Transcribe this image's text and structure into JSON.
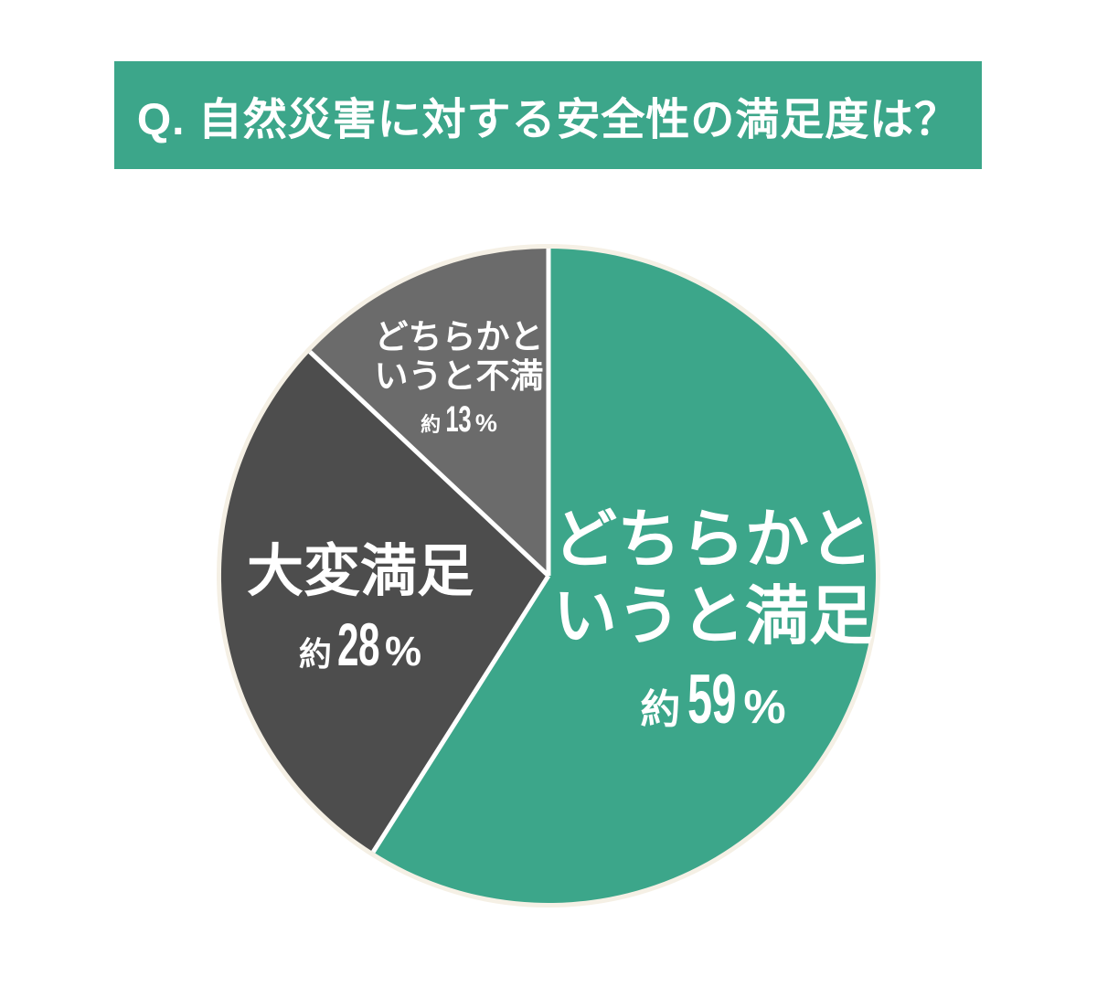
{
  "header": {
    "title": "Q. 自然災害に対する安全性の満足度は？"
  },
  "colors": {
    "banner": "#3CA68A",
    "teal_slice": "#3CA68A",
    "dark_gray_slice": "#4D4D4D",
    "mid_gray_slice": "#6B6B6B",
    "separator": "#FFFFFF",
    "halo_ring": "#F5F0E5",
    "label_text": "#FFFFFF",
    "background": "#FFFFFF"
  },
  "chart_data": {
    "type": "pie",
    "title": "Q. 自然災害に対する安全性の満足度は？",
    "unit": "%",
    "start_angle": "top",
    "direction": "clockwise",
    "legend_position": "none",
    "slices": [
      {
        "name": "どちらかというと満足",
        "label_lines": [
          "どちらかと",
          "いうと満足"
        ],
        "approx_label": "約",
        "value": 59,
        "value_text": "59",
        "percent_sign": "%",
        "color": "#3CA68A",
        "text_color": "#FFFFFF"
      },
      {
        "name": "大変満足",
        "label_lines": [
          "大変満足"
        ],
        "approx_label": "約",
        "value": 28,
        "value_text": "28",
        "percent_sign": "%",
        "color": "#4D4D4D",
        "text_color": "#FFFFFF"
      },
      {
        "name": "どちらかというと不満",
        "label_lines": [
          "どちらかと",
          "いうと不満"
        ],
        "approx_label": "約",
        "value": 13,
        "value_text": "13",
        "percent_sign": "%",
        "color": "#6B6B6B",
        "text_color": "#FFFFFF"
      }
    ]
  }
}
